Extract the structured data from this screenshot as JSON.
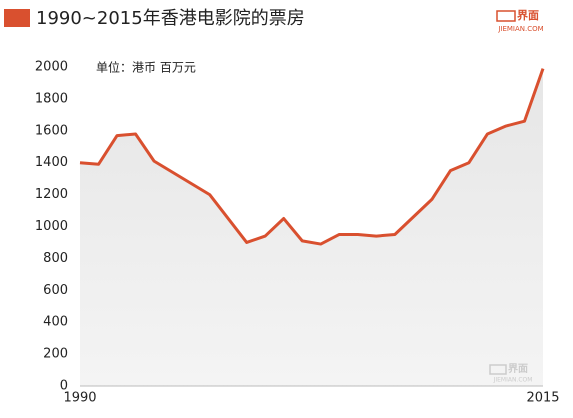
{
  "chart_data": {
    "type": "line",
    "title": "1990~2015年香港电影院的票房",
    "annotation": "单位：港币 百万元",
    "brand": {
      "name": "界面",
      "site": "JIEMIAN.COM"
    },
    "x": [
      1990,
      1991,
      1992,
      1993,
      1994,
      1997,
      1999,
      2000,
      2001,
      2002,
      2003,
      2004,
      2005,
      2006,
      2007,
      2009,
      2010,
      2011,
      2012,
      2013,
      2014,
      2015
    ],
    "series": [
      {
        "color": "#d9502f",
        "values": [
          1400,
          1390,
          1570,
          1580,
          1410,
          1200,
          900,
          940,
          1050,
          910,
          890,
          950,
          950,
          940,
          950,
          1170,
          1350,
          1400,
          1580,
          1630,
          1660,
          1990
        ]
      }
    ],
    "xlim": [
      1990,
      2015
    ],
    "xticks": [
      1990,
      2015
    ],
    "ylim": [
      0,
      2000
    ],
    "yticks": [
      0,
      200,
      400,
      600,
      800,
      1000,
      1200,
      1400,
      1600,
      1800,
      2000
    ],
    "area": true
  }
}
